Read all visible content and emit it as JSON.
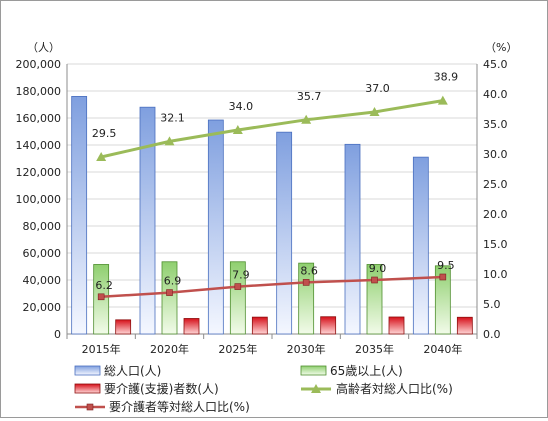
{
  "chart_data": {
    "type": "bar",
    "categories": [
      "2015年",
      "2020年",
      "2025年",
      "2030年",
      "2035年",
      "2040年"
    ],
    "y_left": {
      "unit": "（人）",
      "ylim": [
        0,
        200000
      ],
      "ticks": [
        "0",
        "20,000",
        "40,000",
        "60,000",
        "80,000",
        "100,000",
        "120,000",
        "140,000",
        "160,000",
        "180,000",
        "200,000"
      ]
    },
    "y_right": {
      "unit": "（%）",
      "ylim": [
        0,
        45
      ],
      "ticks": [
        "0.0",
        "5.0",
        "10.0",
        "15.0",
        "20.0",
        "25.0",
        "30.0",
        "35.0",
        "40.0",
        "45.0"
      ]
    },
    "series": [
      {
        "name": "総人口(人)",
        "kind": "bar",
        "axis": "left",
        "color": "#7f9fdf",
        "values": [
          176000,
          168000,
          158500,
          149500,
          140500,
          131000
        ]
      },
      {
        "name": "65歳以上(人)",
        "kind": "bar",
        "axis": "left",
        "color": "#8fcf6f",
        "values": [
          51500,
          53500,
          53500,
          52500,
          51500,
          50500
        ]
      },
      {
        "name": "要介護(支援)者数(人)",
        "kind": "bar",
        "axis": "left",
        "color": "#e0292c",
        "values": [
          10500,
          11500,
          12500,
          12800,
          12600,
          12400
        ]
      },
      {
        "name": "高齢者対総人口比(%)",
        "kind": "line",
        "axis": "right",
        "color": "#9bbb59",
        "marker": "triangle",
        "values": [
          29.5,
          32.1,
          34.0,
          35.7,
          37.0,
          38.9
        ],
        "labels": [
          "29.5",
          "32.1",
          "34.0",
          "35.7",
          "37.0",
          "38.9"
        ]
      },
      {
        "name": "要介護者等対総人口比(%)",
        "kind": "line",
        "axis": "right",
        "color": "#c0504d",
        "marker": "square",
        "values": [
          6.2,
          6.9,
          7.9,
          8.6,
          9.0,
          9.5
        ],
        "labels": [
          "6.2",
          "6.9",
          "7.9",
          "8.6",
          "9.0",
          "9.5"
        ]
      }
    ],
    "grid": true,
    "legend": "bottom"
  }
}
